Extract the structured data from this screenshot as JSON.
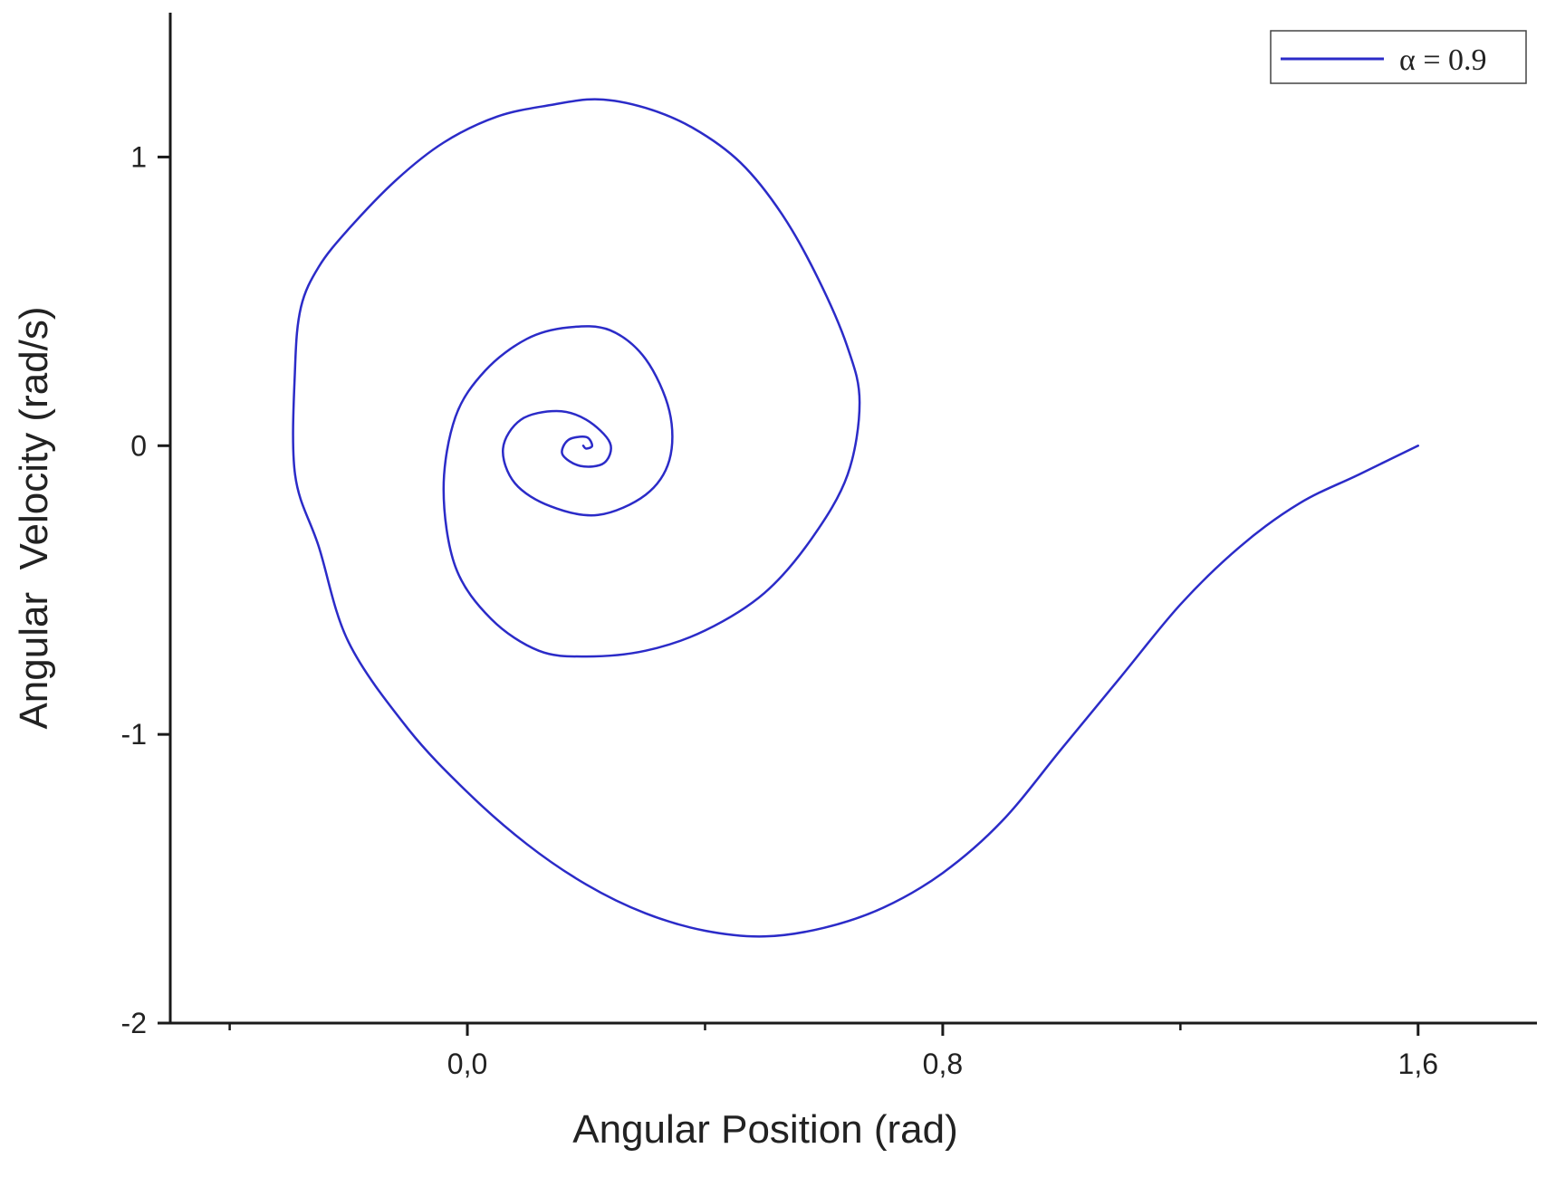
{
  "chart_data": {
    "type": "line",
    "title": "",
    "xlabel": "Angular Position (rad)",
    "ylabel": "Angular  Velocity (rad/s)",
    "xlim": [
      -0.5,
      1.8
    ],
    "ylim": [
      -2.0,
      1.5
    ],
    "xticks": [
      {
        "value": 0.0,
        "label": "0,0"
      },
      {
        "value": 0.8,
        "label": "0,8"
      },
      {
        "value": 1.6,
        "label": "1,6"
      }
    ],
    "xticks_minor": [
      -0.4,
      0.4,
      1.2
    ],
    "yticks": [
      {
        "value": -2,
        "label": "-2"
      },
      {
        "value": -1,
        "label": "-1"
      },
      {
        "value": 0,
        "label": "0"
      },
      {
        "value": 1,
        "label": "1"
      }
    ],
    "grid": false,
    "legend_position": "top-right",
    "series": [
      {
        "name": "α = 0.9",
        "color": "#2b2bc8",
        "x": [
          1.6,
          1.5,
          1.4,
          1.3,
          1.2,
          1.1,
          1.0,
          0.9,
          0.8,
          0.7,
          0.6,
          0.5,
          0.4,
          0.3,
          0.2,
          0.1,
          0.0,
          -0.1,
          -0.2,
          -0.25,
          -0.29,
          -0.29,
          -0.28,
          -0.25,
          -0.2,
          -0.12,
          -0.04,
          0.05,
          0.14,
          0.22,
          0.3,
          0.38,
          0.46,
          0.53,
          0.59,
          0.64,
          0.66,
          0.64,
          0.58,
          0.5,
          0.4,
          0.3,
          0.2,
          0.12,
          0.04,
          -0.02,
          -0.04,
          -0.02,
          0.03,
          0.1,
          0.17,
          0.24,
          0.3,
          0.34,
          0.34,
          0.3,
          0.22,
          0.14,
          0.08,
          0.06,
          0.09,
          0.15,
          0.2,
          0.24,
          0.23,
          0.19,
          0.16,
          0.17,
          0.2,
          0.21,
          0.2,
          0.195
        ],
        "y": [
          0.0,
          -0.1,
          -0.2,
          -0.35,
          -0.55,
          -0.8,
          -1.05,
          -1.3,
          -1.48,
          -1.6,
          -1.67,
          -1.7,
          -1.68,
          -1.62,
          -1.52,
          -1.38,
          -1.2,
          -0.98,
          -0.68,
          -0.35,
          -0.1,
          0.27,
          0.48,
          0.62,
          0.75,
          0.92,
          1.05,
          1.14,
          1.18,
          1.2,
          1.17,
          1.1,
          0.98,
          0.8,
          0.58,
          0.34,
          0.15,
          -0.1,
          -0.32,
          -0.51,
          -0.64,
          -0.71,
          -0.73,
          -0.71,
          -0.6,
          -0.42,
          -0.15,
          0.1,
          0.26,
          0.37,
          0.41,
          0.4,
          0.3,
          0.12,
          -0.05,
          -0.17,
          -0.24,
          -0.21,
          -0.13,
          -0.01,
          0.09,
          0.12,
          0.09,
          0.01,
          -0.06,
          -0.07,
          -0.03,
          0.02,
          0.03,
          0.0,
          -0.01,
          0.0
        ]
      }
    ]
  }
}
